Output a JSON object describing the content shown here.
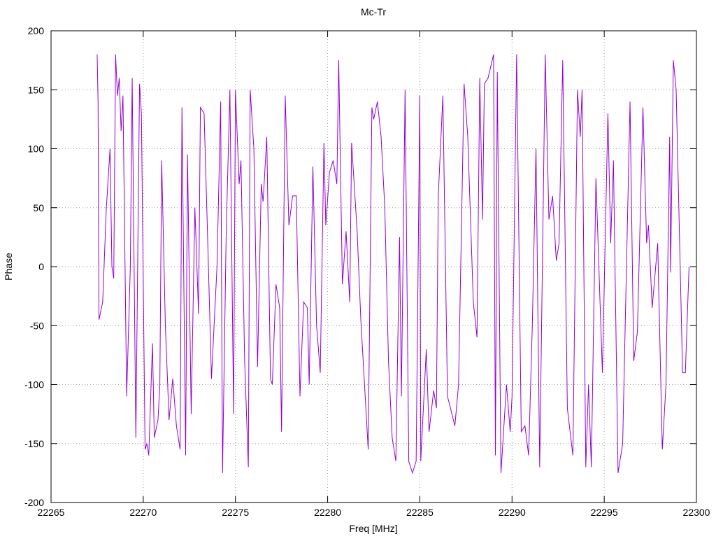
{
  "chart_data": {
    "type": "line",
    "title": "Mc-Tr",
    "x_label": "Freq [MHz]",
    "y_label": "Phase",
    "xlim": [
      22265,
      22300
    ],
    "xticks": [
      22265,
      22270,
      22275,
      22280,
      22285,
      22290,
      22295,
      22300
    ],
    "ylim": [
      -200,
      200
    ],
    "yticks": [
      -200,
      -150,
      -100,
      -50,
      0,
      50,
      100,
      150,
      200
    ],
    "grid": true,
    "x": [
      22267.5,
      22267.55,
      22267.6,
      22267.8,
      22268.0,
      22268.2,
      22268.3,
      22268.4,
      22268.5,
      22268.6,
      22268.7,
      22268.8,
      22268.9,
      22269.1,
      22269.3,
      22269.4,
      22269.6,
      22269.8,
      22269.9,
      22270.1,
      22270.2,
      22270.3,
      22270.5,
      22270.6,
      22270.8,
      22270.9,
      22271.0,
      22271.2,
      22271.4,
      22271.6,
      22271.8,
      22272.0,
      22272.1,
      22272.3,
      22272.4,
      22272.6,
      22272.8,
      22273.0,
      22273.1,
      22273.3,
      22273.5,
      22273.7,
      22274.0,
      22274.2,
      22274.3,
      22274.5,
      22274.7,
      22274.9,
      22275.0,
      22275.2,
      22275.3,
      22275.5,
      22275.7,
      22275.8,
      22276.0,
      22276.2,
      22276.4,
      22276.5,
      22276.7,
      22276.9,
      22277.0,
      22277.2,
      22277.4,
      22277.5,
      22277.7,
      22277.9,
      22278.1,
      22278.3,
      22278.5,
      22278.7,
      22278.9,
      22279.0,
      22279.2,
      22279.4,
      22279.6,
      22279.8,
      22279.9,
      22280.1,
      22280.3,
      22280.5,
      22280.6,
      22280.8,
      22281.0,
      22281.2,
      22281.3,
      22281.6,
      22281.8,
      22282.0,
      22282.2,
      22282.4,
      22282.5,
      22282.7,
      22282.9,
      22283.1,
      22283.3,
      22283.5,
      22283.7,
      22283.9,
      22284.0,
      22284.2,
      22284.4,
      22284.6,
      22284.8,
      22285.0,
      22285.05,
      22285.35,
      22285.5,
      22285.75,
      22285.9,
      22286.0,
      22286.25,
      22286.5,
      22286.9,
      22287.1,
      22287.4,
      22287.6,
      22287.9,
      22288.1,
      22288.25,
      22288.4,
      22288.5,
      22288.7,
      22289.0,
      22289.1,
      22289.2,
      22289.4,
      22289.7,
      22289.9,
      22290.0,
      22290.25,
      22290.5,
      22290.7,
      22290.9,
      22291.1,
      22291.3,
      22291.5,
      22291.8,
      22292.0,
      22292.2,
      22292.4,
      22292.55,
      22292.75,
      22293.0,
      22293.3,
      22293.55,
      22293.7,
      22293.8,
      22294.0,
      22294.15,
      22294.3,
      22294.55,
      22294.9,
      22295.2,
      22295.35,
      22295.5,
      22295.75,
      22296.0,
      22296.4,
      22296.6,
      22296.8,
      22297.1,
      22297.3,
      22297.4,
      22297.6,
      22297.9,
      22298.15,
      22298.35,
      22298.55,
      22298.6,
      22298.75,
      22298.9,
      22299.25,
      22299.4,
      22299.6
    ],
    "series": [
      {
        "color": "#9400d3",
        "values": [
          180,
          140,
          -45,
          -30,
          50,
          100,
          0,
          -10,
          180,
          145,
          160,
          115,
          145,
          -110,
          0,
          160,
          -145,
          155,
          130,
          -155,
          -150,
          -160,
          -65,
          -145,
          -130,
          -100,
          90,
          -50,
          -130,
          -95,
          -135,
          -155,
          135,
          -160,
          95,
          -125,
          50,
          -40,
          135,
          130,
          20,
          -95,
          0,
          140,
          -175,
          30,
          150,
          -125,
          150,
          70,
          90,
          -80,
          -170,
          150,
          100,
          -85,
          70,
          55,
          110,
          -95,
          -100,
          -15,
          -35,
          -140,
          145,
          35,
          60,
          60,
          -110,
          -30,
          -35,
          -100,
          85,
          -50,
          -90,
          105,
          35,
          80,
          90,
          70,
          175,
          -15,
          30,
          -30,
          105,
          30,
          -45,
          -100,
          -155,
          135,
          125,
          140,
          110,
          50,
          -80,
          -145,
          -165,
          25,
          -110,
          150,
          -165,
          -175,
          -165,
          145,
          -165,
          -70,
          -140,
          -105,
          -120,
          60,
          145,
          -110,
          -135,
          -100,
          155,
          110,
          -30,
          -60,
          160,
          40,
          155,
          160,
          180,
          -160,
          165,
          -175,
          -100,
          -140,
          -110,
          180,
          -140,
          -135,
          -160,
          -50,
          100,
          -170,
          180,
          40,
          60,
          5,
          20,
          175,
          -120,
          -160,
          150,
          110,
          150,
          -170,
          -100,
          -170,
          75,
          -90,
          130,
          20,
          90,
          -175,
          -150,
          140,
          -80,
          -55,
          135,
          20,
          35,
          -35,
          20,
          -155,
          -100,
          110,
          -5,
          175,
          150,
          -90,
          -90,
          0
        ]
      }
    ]
  }
}
